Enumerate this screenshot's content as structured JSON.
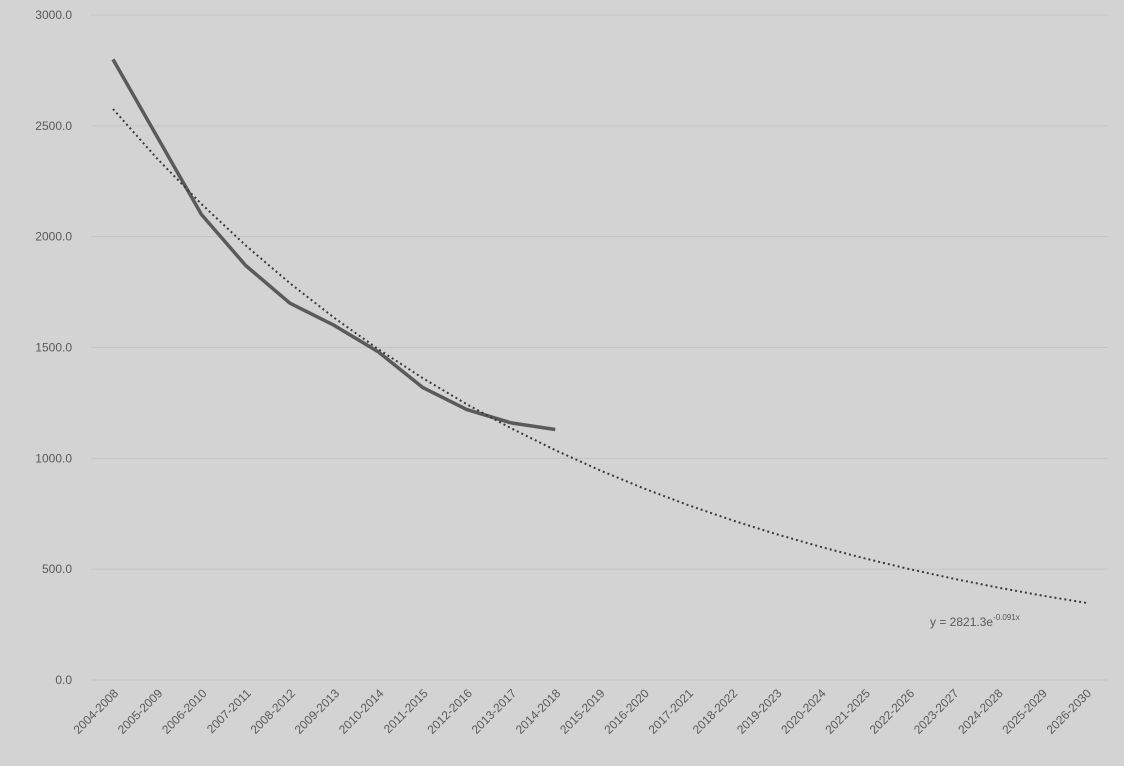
{
  "chart_data": {
    "type": "line",
    "categories": [
      "2004-2008",
      "2005-2009",
      "2006-2010",
      "2007-2011",
      "2008-2012",
      "2009-2013",
      "2010-2014",
      "2011-2015",
      "2012-2016",
      "2013-2017",
      "2014-2018",
      "2015-2019",
      "2016-2020",
      "2017-2021",
      "2018-2022",
      "2019-2023",
      "2020-2024",
      "2021-2025",
      "2022-2026",
      "2023-2027",
      "2024-2028",
      "2025-2029",
      "2026-2030"
    ],
    "series": [
      {
        "color": "#5a5a5a",
        "style": "solid",
        "values": [
          2800,
          2450,
          2100,
          1870,
          1700,
          1600,
          1480,
          1320,
          1220,
          1160,
          1130,
          null,
          null,
          null,
          null,
          null,
          null,
          null,
          null,
          null,
          null,
          null,
          null
        ]
      },
      {
        "color": "#3a3a3a",
        "style": "dotted",
        "values": [
          2575.9,
          2351.9,
          2147.3,
          1960.5,
          1790.0,
          1634.3,
          1492.2,
          1362.4,
          1243.9,
          1135.7,
          1036.9,
          946.7,
          864.4,
          789.2,
          720.6,
          657.9,
          600.7,
          548.4,
          500.7,
          457.2,
          417.4,
          381.1,
          348.0
        ]
      }
    ],
    "ylim": [
      0,
      3000
    ],
    "yticks": [
      {
        "value": 0,
        "label": "0.0"
      },
      {
        "value": 500,
        "label": "500.0"
      },
      {
        "value": 1000,
        "label": "1000.0"
      },
      {
        "value": 1500,
        "label": "1500.0"
      },
      {
        "value": 2000,
        "label": "2000.0"
      },
      {
        "value": 2500,
        "label": "2500.0"
      },
      {
        "value": 3000,
        "label": "3000.0"
      }
    ],
    "grid": true,
    "annotation": {
      "text": "y = 2821.3e",
      "superscript": "-0.091x"
    }
  }
}
